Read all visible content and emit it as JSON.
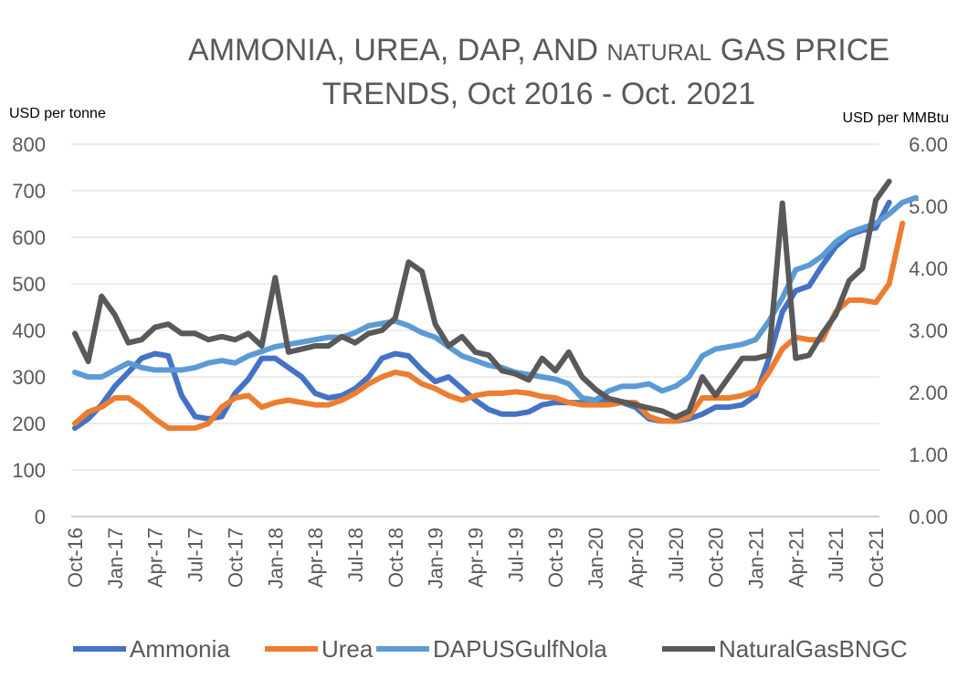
{
  "chart_data": {
    "type": "line",
    "title_line1_a": "AMMONIA, UREA, DAP, AND ",
    "title_line1_b": "NATURAL",
    "title_line1_c": " GAS PRICE",
    "title_line2": "TRENDS, Oct 2016 - Oct. 2021",
    "y_left_label": "USD per tonne",
    "y_right_label": "USD per MMBtu",
    "y_left_ticks": [
      "0",
      "100",
      "200",
      "300",
      "400",
      "500",
      "600",
      "700",
      "800"
    ],
    "y_right_ticks": [
      "0.00",
      "1.00",
      "2.00",
      "3.00",
      "4.00",
      "5.00",
      "6.00"
    ],
    "ylim_left": [
      0,
      800
    ],
    "ylim_right": [
      0,
      6
    ],
    "grid": true,
    "legend_position": "bottom",
    "x_tick_labels": [
      "Oct-16",
      "Jan-17",
      "Apr-17",
      "Jul-17",
      "Oct-17",
      "Jan-18",
      "Apr-18",
      "Jul-18",
      "Oct-18",
      "Jan-19",
      "Apr-19",
      "Jul-19",
      "Oct-19",
      "Jan-20",
      "Apr-20",
      "Jul-20",
      "Oct-20",
      "Jan-21",
      "Apr-21",
      "Jul-21",
      "Oct-21"
    ],
    "series": [
      {
        "name": "Ammonia",
        "color": "#4472C4",
        "axis": "left",
        "values": [
          190,
          210,
          240,
          280,
          310,
          340,
          350,
          345,
          260,
          215,
          210,
          215,
          265,
          295,
          340,
          340,
          320,
          300,
          265,
          255,
          260,
          275,
          300,
          340,
          350,
          345,
          315,
          290,
          300,
          275,
          250,
          230,
          220,
          220,
          225,
          240,
          245,
          245,
          245,
          248,
          250,
          245,
          235,
          210,
          205,
          205,
          210,
          220,
          235,
          235,
          240,
          260,
          340,
          440,
          485,
          495,
          540,
          580,
          605,
          615,
          620,
          675
        ]
      },
      {
        "name": "Urea",
        "color": "#ED7D31",
        "axis": "left",
        "values": [
          200,
          225,
          235,
          255,
          255,
          235,
          210,
          190,
          190,
          190,
          200,
          235,
          255,
          260,
          235,
          245,
          250,
          245,
          240,
          240,
          250,
          265,
          285,
          300,
          310,
          305,
          285,
          275,
          260,
          250,
          260,
          265,
          265,
          268,
          265,
          258,
          255,
          245,
          240,
          240,
          240,
          245,
          245,
          215,
          205,
          205,
          215,
          255,
          255,
          255,
          260,
          270,
          310,
          360,
          385,
          380,
          380,
          440,
          465,
          465,
          460,
          500,
          630
        ]
      },
      {
        "name": "DAPUSGulfNola",
        "color": "#5B9BD5",
        "axis": "left",
        "values": [
          310,
          300,
          300,
          315,
          330,
          320,
          315,
          315,
          315,
          320,
          330,
          335,
          330,
          345,
          355,
          365,
          370,
          375,
          380,
          385,
          385,
          395,
          410,
          415,
          420,
          410,
          395,
          385,
          365,
          345,
          335,
          325,
          320,
          310,
          305,
          300,
          295,
          285,
          255,
          250,
          270,
          280,
          280,
          285,
          270,
          280,
          300,
          345,
          360,
          365,
          370,
          380,
          420,
          470,
          530,
          540,
          560,
          590,
          610,
          620,
          630,
          650,
          675,
          685
        ]
      },
      {
        "name": "NaturalGasBNGC",
        "color": "#595959",
        "axis": "right",
        "values": [
          2.95,
          2.5,
          3.55,
          3.25,
          2.8,
          2.85,
          3.05,
          3.1,
          2.95,
          2.95,
          2.85,
          2.9,
          2.85,
          2.95,
          2.75,
          3.85,
          2.65,
          2.7,
          2.75,
          2.75,
          2.9,
          2.8,
          2.95,
          3.0,
          3.2,
          4.1,
          3.95,
          3.1,
          2.75,
          2.9,
          2.65,
          2.6,
          2.35,
          2.3,
          2.2,
          2.55,
          2.35,
          2.65,
          2.25,
          2.05,
          1.9,
          1.85,
          1.8,
          1.75,
          1.7,
          1.6,
          1.7,
          2.25,
          1.95,
          2.25,
          2.55,
          2.55,
          2.6,
          5.05,
          2.55,
          2.6,
          2.95,
          3.25,
          3.8,
          4.0,
          5.1,
          5.4
        ]
      }
    ]
  }
}
